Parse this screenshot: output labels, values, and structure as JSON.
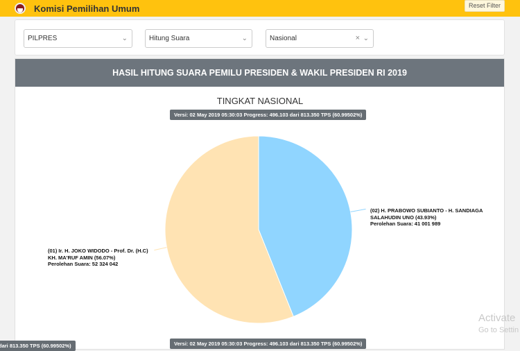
{
  "header": {
    "title": "Komisi Pemilihan Umum",
    "reset_label": "Reset Filter"
  },
  "filters": {
    "election": "PILPRES",
    "mode": "Hitung Suara",
    "region": "Nasional"
  },
  "panel": {
    "title": "HASIL HITUNG SUARA PEMILU PRESIDEN & WAKIL PRESIDEN RI 2019",
    "subtitle": "TINGKAT NASIONAL",
    "version": "Versi: 02 May 2019 05:30:03 Progress: 496.103 dari 813.350 TPS (60.99502%)",
    "partial_tip": "dari 813.350 TPS (60.99502%)"
  },
  "chart_data": {
    "type": "pie",
    "slices": [
      {
        "label_line1": "(02) H. PRABOWO SUBIANTO - H. SANDIAGA",
        "label_line2": "SALAHUDIN UNO (43.93%)",
        "votes_text": "Perolehan Suara: 41 001 989",
        "percent": 43.93,
        "votes": 41001989,
        "color": "#90d5ff"
      },
      {
        "label_line1": "(01) Ir. H. JOKO WIDODO - Prof. Dr. (H.C)",
        "label_line2": "KH. MA'RUF AMIN (56.07%)",
        "votes_text": "Perolehan Suara: 52 324 042",
        "percent": 56.07,
        "votes": 52324042,
        "color": "#ffe3b3"
      }
    ]
  },
  "watermark": {
    "line1": "Activate",
    "line2": "Go to Settin"
  }
}
